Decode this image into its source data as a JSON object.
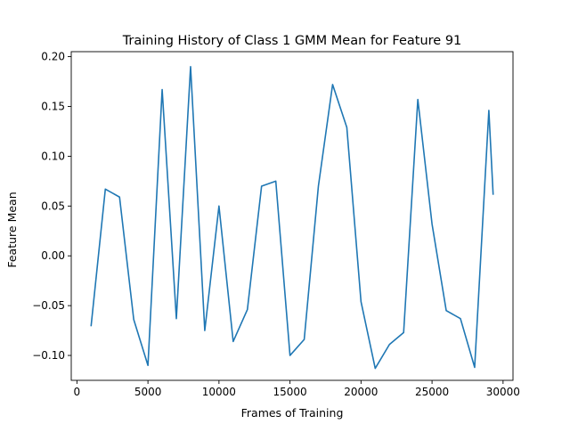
{
  "chart_data": {
    "type": "line",
    "title": "Training History of Class 1 GMM Mean for Feature 91",
    "xlabel": "Frames of Training",
    "ylabel": "Feature Mean",
    "xlim": [
      -400,
      30700
    ],
    "ylim": [
      -0.125,
      0.205
    ],
    "xticks": [
      0,
      5000,
      10000,
      15000,
      20000,
      25000,
      30000
    ],
    "yticks": [
      -0.1,
      -0.05,
      0.0,
      0.05,
      0.1,
      0.15,
      0.2
    ],
    "xtick_labels": [
      "0",
      "5000",
      "10000",
      "15000",
      "20000",
      "25000",
      "30000"
    ],
    "ytick_labels": [
      "−0.10",
      "−0.05",
      "0.00",
      "0.05",
      "0.10",
      "0.15",
      "0.20"
    ],
    "grid": false,
    "series_color": "#1f77b4",
    "series": [
      {
        "x": [
          1000,
          2000,
          3000,
          4000,
          5000,
          6000,
          7000,
          8000,
          9000,
          10000,
          11000,
          12000,
          13000,
          14000,
          15000,
          16000,
          17000,
          18000,
          19000,
          20000,
          21000,
          22000,
          23000,
          24000,
          25000,
          26000,
          27000,
          28000,
          29000,
          29300
        ],
        "values": [
          -0.07,
          0.067,
          0.059,
          -0.064,
          -0.11,
          0.167,
          -0.063,
          0.19,
          -0.075,
          0.05,
          -0.086,
          -0.054,
          0.07,
          0.075,
          -0.1,
          -0.084,
          0.07,
          0.172,
          0.129,
          -0.046,
          -0.113,
          -0.089,
          -0.077,
          0.157,
          0.032,
          -0.055,
          -0.063,
          -0.112,
          0.146,
          0.062
        ]
      }
    ]
  }
}
